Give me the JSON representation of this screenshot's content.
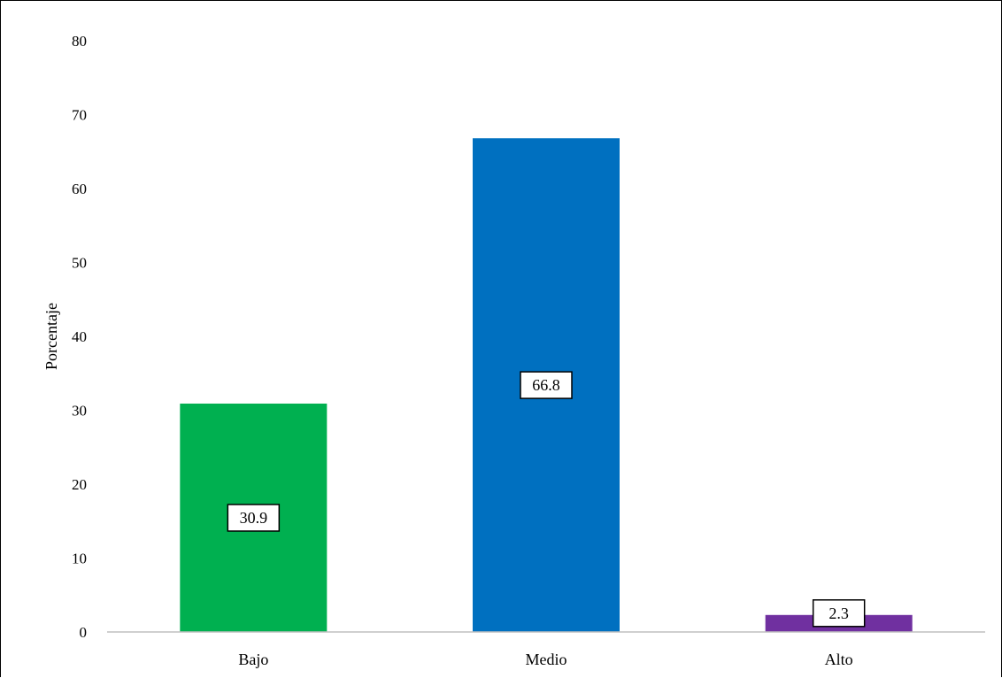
{
  "chart_data": {
    "type": "bar",
    "categories": [
      "Bajo",
      "Medio",
      "Alto"
    ],
    "values": [
      30.9,
      66.8,
      2.3
    ],
    "data_labels": [
      "30.9",
      "66.8",
      "2.3"
    ],
    "colors": [
      "#00B050",
      "#0070C0",
      "#7030A0"
    ],
    "title": "",
    "xlabel": "",
    "ylabel": "Porcentaje",
    "ylim": [
      0,
      80
    ],
    "yticks": [
      0,
      10,
      20,
      30,
      40,
      50,
      60,
      70,
      80
    ],
    "grid": false,
    "legend": "none"
  }
}
